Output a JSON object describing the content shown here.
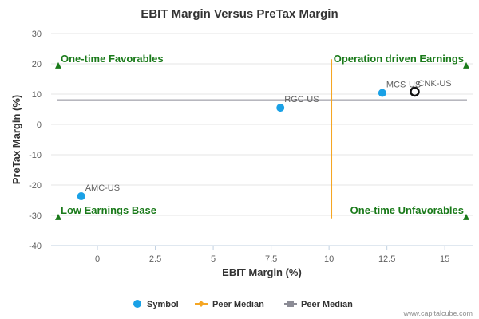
{
  "chart_data": {
    "type": "scatter",
    "title": "EBIT Margin Versus PreTax Margin",
    "xlabel": "EBIT Margin (%)",
    "ylabel": "PreTax Margin (%)",
    "xlim": [
      -2.0,
      16.2
    ],
    "ylim": [
      -40,
      30
    ],
    "x_ticks": [
      0,
      2.5,
      5,
      7.5,
      10,
      12.5,
      15
    ],
    "x_tick_labels": [
      "0",
      "2.5",
      "5",
      "7.5",
      "10",
      "12.5",
      "15"
    ],
    "y_ticks": [
      30,
      20,
      10,
      0,
      -10,
      -20,
      -30,
      -40
    ],
    "y_tick_labels": [
      "30",
      "20",
      "10",
      "0",
      "-10",
      "-20",
      "-30",
      "-40"
    ],
    "grid": "horizontal",
    "points": [
      {
        "label": "AMC-US",
        "x": -0.7,
        "y": -23.7
      },
      {
        "label": "RGC-US",
        "x": 7.9,
        "y": 5.5
      },
      {
        "label": "MCS-US",
        "x": 12.3,
        "y": 10.4
      }
    ],
    "highlight": {
      "label": "CNK-US",
      "x": 13.7,
      "y": 10.8
    },
    "peer_median": {
      "x": 10.1,
      "y": 8.0
    },
    "quadrants": {
      "top_left": "One-time Favorables",
      "top_right": "Operation driven Earnings",
      "bottom_left": "Low Earnings Base",
      "bottom_right": "One-time Unfavorables"
    },
    "colors": {
      "symbol": "#1aa1e6",
      "peer_median_x": "#f5a623",
      "peer_median_y": "#8c8c96",
      "quadrant_text": "#1a7a1a",
      "grid": "#e6e6e6"
    },
    "legend": {
      "position": "bottom",
      "items": [
        "Symbol",
        "Peer Median",
        "Peer Median"
      ]
    },
    "credit": "www.capitalcube.com"
  }
}
